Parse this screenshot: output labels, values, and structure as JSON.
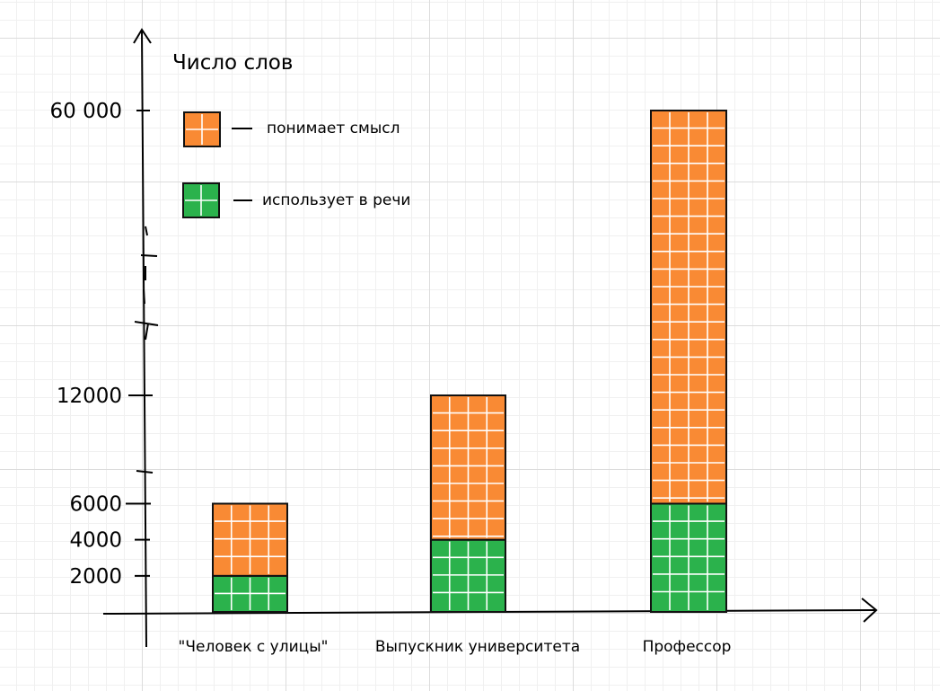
{
  "chart_data": {
    "type": "bar",
    "stacked": true,
    "title": "Число слов",
    "ylabel": "Число слов",
    "xlabel": "",
    "categories": [
      "\"Человек с улицы\"",
      "Выпускник университета",
      "Профессор"
    ],
    "series": [
      {
        "name": "использует в речи",
        "values": [
          2000,
          4000,
          6000
        ],
        "color": "#2bb24c"
      },
      {
        "name": "понимает смысл",
        "values": [
          4000,
          8000,
          54000
        ],
        "color": "#f98a34"
      }
    ],
    "yticks": [
      "2000",
      "4000",
      "6000",
      "12000",
      "60 000"
    ],
    "ytick_values": [
      2000,
      4000,
      6000,
      12000,
      60000
    ],
    "y_axis_break": true,
    "legend_position": "top-left",
    "grid": true
  },
  "colors": {
    "understands": "#f98a34",
    "uses": "#2bb24c",
    "stroke": "#111111"
  }
}
